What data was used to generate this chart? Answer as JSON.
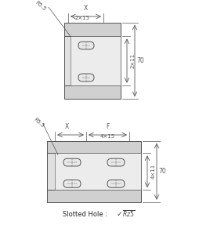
{
  "bg_color": "#ffffff",
  "line_color": "#555555",
  "dim_color": "#555555",
  "title": "",
  "bottom_text": "Slotted Hole : ",
  "top_labels": {
    "x": "X",
    "r": "R5.5",
    "w": "2×15",
    "h": "2×11"
  },
  "bot_labels": {
    "x": "X",
    "f": "F",
    "r": "R5.5",
    "w": "4×15",
    "h": "4×11"
  },
  "dim_70": "70"
}
